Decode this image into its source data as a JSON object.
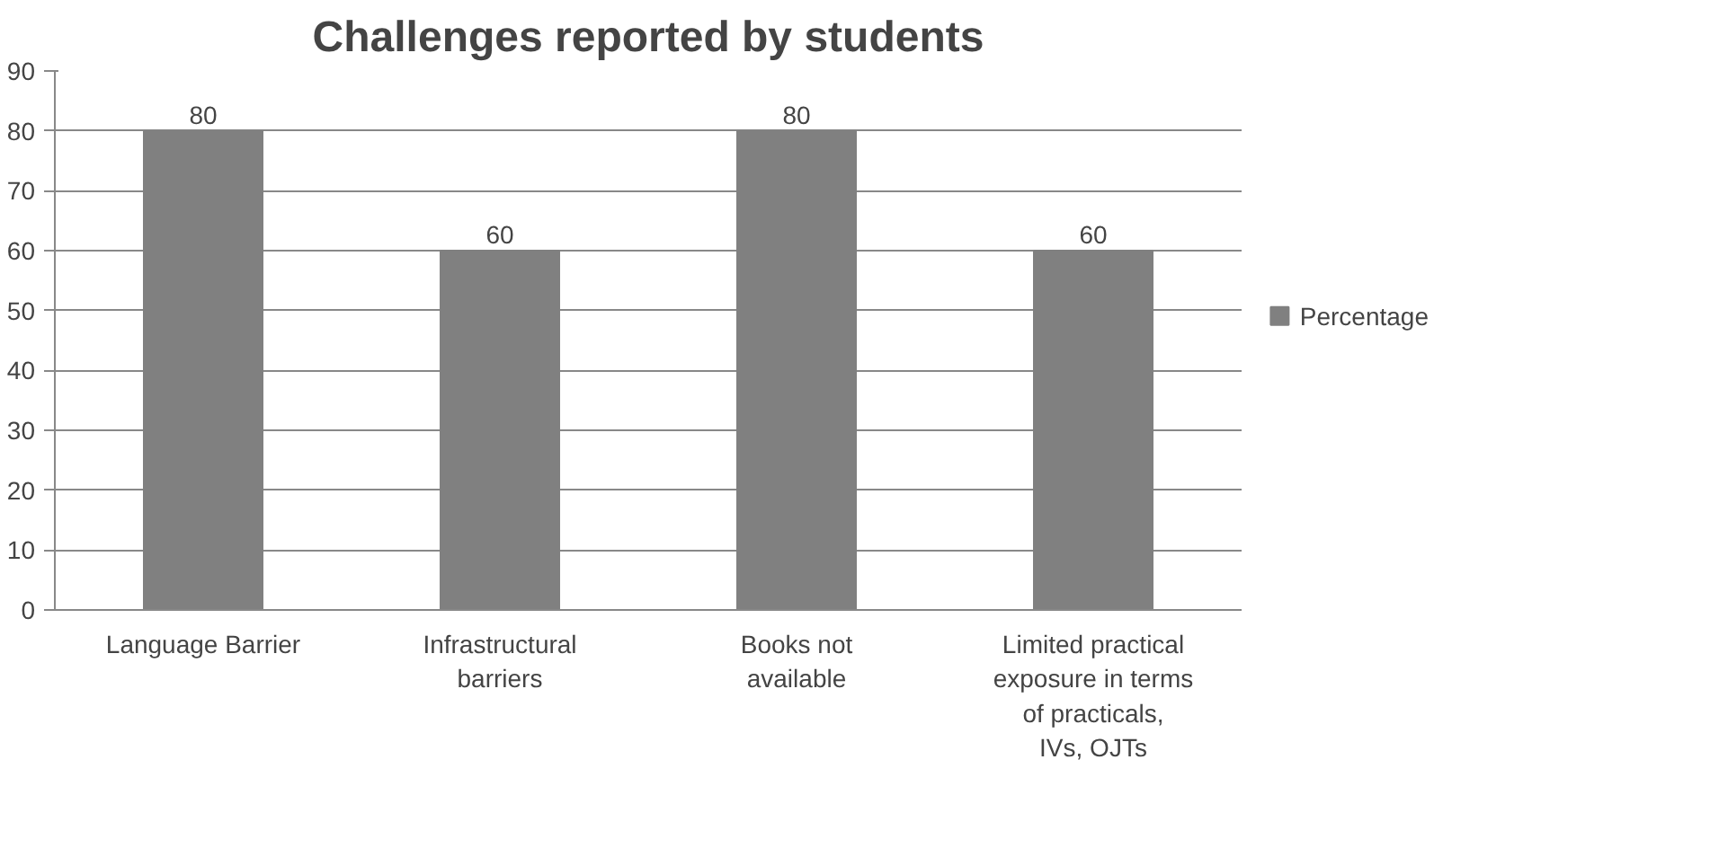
{
  "chart_data": {
    "type": "bar",
    "title": "Challenges reported by students",
    "categories": [
      "Language Barrier",
      "Infrastructural barriers",
      "Books not available",
      "Limited practical exposure in terms of practicals, IVs, OJTs"
    ],
    "series": [
      {
        "name": "Percentage",
        "color": "#808080",
        "values": [
          80,
          60,
          80,
          60
        ]
      }
    ],
    "ylim": [
      0,
      90
    ],
    "yticks": [
      0,
      10,
      20,
      30,
      40,
      50,
      60,
      70,
      80,
      90
    ],
    "grid": "y",
    "legend": "right",
    "data_labels": true
  }
}
